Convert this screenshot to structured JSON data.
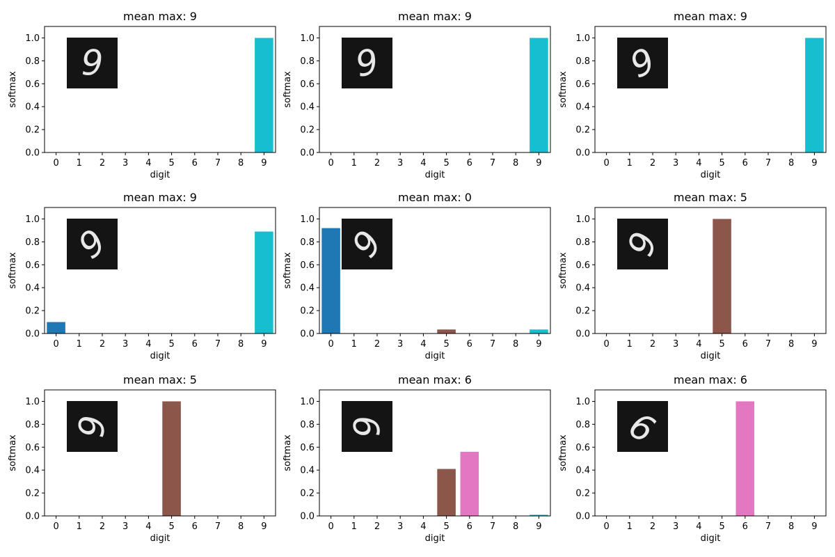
{
  "figure": {
    "description_free": true
  },
  "palette": [
    "#1f77b4",
    "#ff7f0e",
    "#2ca02c",
    "#d62728",
    "#9467bd",
    "#8c564b",
    "#e377c2",
    "#7f7f7f",
    "#bcbd22",
    "#17becf"
  ],
  "chart_data": [
    {
      "type": "bar",
      "title": "mean max: 9",
      "xlabel": "digit",
      "ylabel": "softmax",
      "categories": [
        "0",
        "1",
        "2",
        "3",
        "4",
        "5",
        "6",
        "7",
        "8",
        "9"
      ],
      "values": [
        0,
        0,
        0,
        0,
        0,
        0,
        0,
        0,
        0,
        1.0
      ],
      "ylim": [
        0,
        1.1
      ],
      "yticks": [
        "0.0",
        "0.2",
        "0.4",
        "0.6",
        "0.8",
        "1.0"
      ],
      "inset_digit": "9",
      "inset_style": "upright"
    },
    {
      "type": "bar",
      "title": "mean max: 9",
      "xlabel": "digit",
      "ylabel": "softmax",
      "categories": [
        "0",
        "1",
        "2",
        "3",
        "4",
        "5",
        "6",
        "7",
        "8",
        "9"
      ],
      "values": [
        0,
        0,
        0,
        0,
        0,
        0,
        0,
        0,
        0,
        1.0
      ],
      "ylim": [
        0,
        1.1
      ],
      "yticks": [
        "0.0",
        "0.2",
        "0.4",
        "0.6",
        "0.8",
        "1.0"
      ],
      "inset_digit": "9",
      "inset_style": "slight-rotate"
    },
    {
      "type": "bar",
      "title": "mean max: 9",
      "xlabel": "digit",
      "ylabel": "softmax",
      "categories": [
        "0",
        "1",
        "2",
        "3",
        "4",
        "5",
        "6",
        "7",
        "8",
        "9"
      ],
      "values": [
        0,
        0,
        0,
        0,
        0,
        0,
        0,
        0,
        0,
        1.0
      ],
      "ylim": [
        0,
        1.1
      ],
      "yticks": [
        "0.0",
        "0.2",
        "0.4",
        "0.6",
        "0.8",
        "1.0"
      ],
      "inset_digit": "9",
      "inset_style": "rotate"
    },
    {
      "type": "bar",
      "title": "mean max: 9",
      "xlabel": "digit",
      "ylabel": "softmax",
      "categories": [
        "0",
        "1",
        "2",
        "3",
        "4",
        "5",
        "6",
        "7",
        "8",
        "9"
      ],
      "values": [
        0.1,
        0,
        0,
        0,
        0,
        0.003,
        0,
        0,
        0,
        0.89
      ],
      "ylim": [
        0,
        1.1
      ],
      "yticks": [
        "0.0",
        "0.2",
        "0.4",
        "0.6",
        "0.8",
        "1.0"
      ],
      "inset_digit": "9",
      "inset_style": "rotate-more"
    },
    {
      "type": "bar",
      "title": "mean max: 0",
      "xlabel": "digit",
      "ylabel": "softmax",
      "categories": [
        "0",
        "1",
        "2",
        "3",
        "4",
        "5",
        "6",
        "7",
        "8",
        "9"
      ],
      "values": [
        0.92,
        0,
        0,
        0,
        0,
        0.035,
        0,
        0,
        0,
        0.035
      ],
      "ylim": [
        0,
        1.1
      ],
      "yticks": [
        "0.0",
        "0.2",
        "0.4",
        "0.6",
        "0.8",
        "1.0"
      ],
      "inset_digit": "9",
      "inset_style": "tilted"
    },
    {
      "type": "bar",
      "title": "mean max: 5",
      "xlabel": "digit",
      "ylabel": "softmax",
      "categories": [
        "0",
        "1",
        "2",
        "3",
        "4",
        "5",
        "6",
        "7",
        "8",
        "9"
      ],
      "values": [
        0,
        0,
        0,
        0,
        0,
        1.0,
        0,
        0,
        0,
        0
      ],
      "ylim": [
        0,
        1.1
      ],
      "yticks": [
        "0.0",
        "0.2",
        "0.4",
        "0.6",
        "0.8",
        "1.0"
      ],
      "inset_digit": "9",
      "inset_style": "sideways"
    },
    {
      "type": "bar",
      "title": "mean max: 5",
      "xlabel": "digit",
      "ylabel": "softmax",
      "categories": [
        "0",
        "1",
        "2",
        "3",
        "4",
        "5",
        "6",
        "7",
        "8",
        "9"
      ],
      "values": [
        0,
        0,
        0,
        0,
        0,
        1.0,
        0,
        0,
        0,
        0
      ],
      "ylim": [
        0,
        1.1
      ],
      "yticks": [
        "0.0",
        "0.2",
        "0.4",
        "0.6",
        "0.8",
        "1.0"
      ],
      "inset_digit": "9",
      "inset_style": "near-flat"
    },
    {
      "type": "bar",
      "title": "mean max: 6",
      "xlabel": "digit",
      "ylabel": "softmax",
      "categories": [
        "0",
        "1",
        "2",
        "3",
        "4",
        "5",
        "6",
        "7",
        "8",
        "9"
      ],
      "values": [
        0,
        0,
        0,
        0,
        0,
        0.41,
        0.56,
        0,
        0,
        0.01
      ],
      "ylim": [
        0,
        1.1
      ],
      "yticks": [
        "0.0",
        "0.2",
        "0.4",
        "0.6",
        "0.8",
        "1.0"
      ],
      "inset_digit": "9",
      "inset_style": "flat"
    },
    {
      "type": "bar",
      "title": "mean max: 6",
      "xlabel": "digit",
      "ylabel": "softmax",
      "categories": [
        "0",
        "1",
        "2",
        "3",
        "4",
        "5",
        "6",
        "7",
        "8",
        "9"
      ],
      "values": [
        0,
        0,
        0,
        0,
        0,
        0,
        1.0,
        0,
        0,
        0
      ],
      "ylim": [
        0,
        1.1
      ],
      "yticks": [
        "0.0",
        "0.2",
        "0.4",
        "0.6",
        "0.8",
        "1.0"
      ],
      "inset_digit": "9",
      "inset_style": "upside"
    }
  ]
}
